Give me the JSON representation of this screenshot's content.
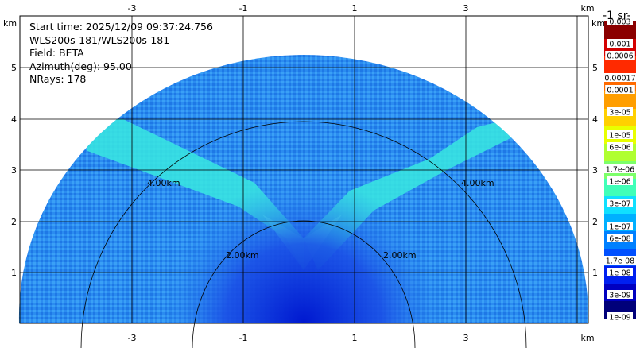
{
  "info": {
    "start_time": "Start time: 2025/12/09 09:37:24.756",
    "instrument": "WLS200s-181/WLS200s-181",
    "field": "Field: BETA",
    "azimuth": "Azimuth(deg): 95.00",
    "nrays": "NRays: 178"
  },
  "axes": {
    "unit_km": "km",
    "x_ticks": [
      "-3",
      "-1",
      "1",
      "3"
    ],
    "y_ticks": [
      "1",
      "2",
      "3",
      "4",
      "5"
    ]
  },
  "range_rings": {
    "inner_label": "2.00km",
    "outer_label": "4.00km"
  },
  "colorbar": {
    "unit_label": "-1 sr-",
    "labels": [
      "0.003",
      "0.001",
      "0.0006",
      "0.00017",
      "0.0001",
      "3e-05",
      "1e-05",
      "6e-06",
      "1.7e-06",
      "1e-06",
      "3e-07",
      "1e-07",
      "6e-08",
      "1.7e-08",
      "1e-08",
      "3e-09",
      "1e-09"
    ]
  },
  "colors": {
    "background_field": "#2a8fef",
    "near_field": "#1a4fe0",
    "feature": "#3df0e0",
    "colorbar_steps": [
      "#8b0000",
      "#d40000",
      "#ff2a00",
      "#ff6a00",
      "#ff9e00",
      "#ffd000",
      "#e8ff00",
      "#b0ff30",
      "#7dff6a",
      "#40ffb8",
      "#10e0ff",
      "#00b0ff",
      "#0080ff",
      "#0050ff",
      "#0020f0",
      "#0000c0",
      "#00007a"
    ]
  }
}
